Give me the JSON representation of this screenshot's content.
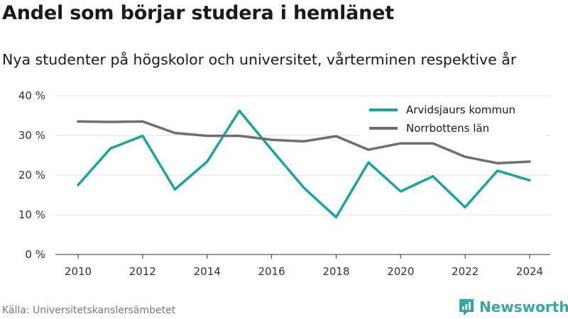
{
  "title": "Andel som börjar studera i hemlänet",
  "subtitle": "Nya studenter på högskolor och universitet, vårterminen respektive år",
  "source": "Källa: Universitetskanslersämbetet",
  "brand": {
    "name": "Newsworthy",
    "icon": "newsworthy-logo-icon",
    "color": "#34a7a4"
  },
  "chart_data": {
    "type": "line",
    "title": "",
    "xlabel": "",
    "ylabel": "",
    "x": [
      2010,
      2011,
      2012,
      2013,
      2014,
      2015,
      2016,
      2017,
      2018,
      2019,
      2020,
      2021,
      2022,
      2023,
      2024
    ],
    "xticks": [
      "2010",
      "2012",
      "2014",
      "2016",
      "2018",
      "2020",
      "2022",
      "2024"
    ],
    "ylim": [
      0,
      40
    ],
    "yticks": [
      "0 %",
      "10 %",
      "20 %",
      "30 %",
      "40 %"
    ],
    "ytick_values": [
      0,
      10,
      20,
      30,
      40
    ],
    "grid": "horizontal",
    "legend_position": "top-right",
    "series": [
      {
        "name": "Arvidsjaurs kommun",
        "color": "#1aa59a",
        "values": [
          17.5,
          26.7,
          29.9,
          16.4,
          23.4,
          36.2,
          26.4,
          16.8,
          9.4,
          23.2,
          15.9,
          19.7,
          11.9,
          21.1,
          18.7
        ]
      },
      {
        "name": "Norrbottens län",
        "color": "#6e6d72",
        "values": [
          33.5,
          33.4,
          33.5,
          30.6,
          29.9,
          29.9,
          28.9,
          28.5,
          29.8,
          26.4,
          28.0,
          28.0,
          24.6,
          23.0,
          23.4
        ]
      }
    ]
  }
}
